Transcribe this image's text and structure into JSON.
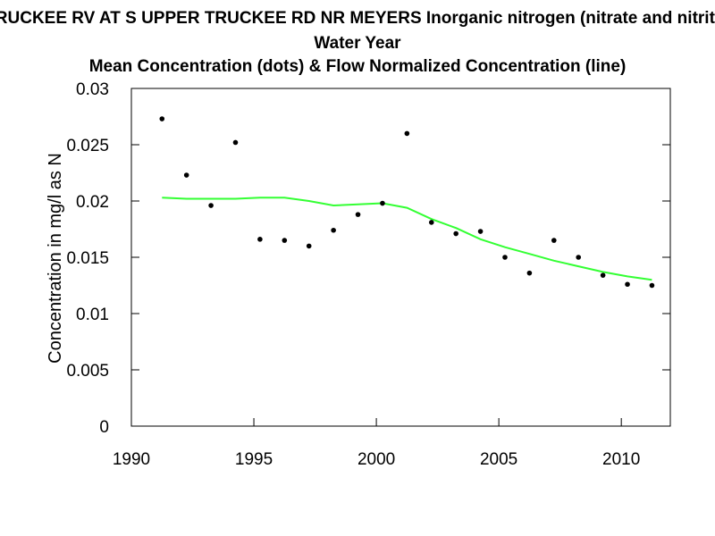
{
  "chart_data": {
    "type": "scatter",
    "title": "TRUCKEE RV AT S UPPER TRUCKEE RD NR MEYERS   Inorganic nitrogen (nitrate and nitrite)",
    "subtitle": "Water Year",
    "subtitle2": "Mean Concentration (dots) & Flow Normalized Concentration (line)",
    "xlabel": "",
    "ylabel": "Concentration in mg/l as N",
    "xlim": [
      1990,
      2012
    ],
    "ylim": [
      0,
      0.03
    ],
    "x_ticks": [
      1990,
      1995,
      2000,
      2005,
      2010
    ],
    "x_tick_labels": [
      "1990",
      "1995",
      "2000",
      "2005",
      "2010"
    ],
    "y_ticks": [
      0,
      0.005,
      0.01,
      0.015,
      0.02,
      0.025,
      0.03
    ],
    "y_tick_labels": [
      "0",
      "0.005",
      "0.01",
      "0.015",
      "0.02",
      "0.025",
      "0.03"
    ],
    "grid": false,
    "series": [
      {
        "name": "Mean Concentration",
        "kind": "points",
        "color": "#000000",
        "x": [
          1991.25,
          1992.25,
          1993.25,
          1994.25,
          1995.25,
          1996.25,
          1997.25,
          1998.25,
          1999.25,
          2000.25,
          2001.25,
          2002.25,
          2003.25,
          2004.25,
          2005.25,
          2006.25,
          2007.25,
          2008.25,
          2009.25,
          2010.25,
          2011.25
        ],
        "y": [
          0.0273,
          0.0223,
          0.0196,
          0.0252,
          0.0166,
          0.0165,
          0.016,
          0.0174,
          0.0188,
          0.0198,
          0.026,
          0.0181,
          0.0171,
          0.0173,
          0.015,
          0.0136,
          0.0165,
          0.015,
          0.0134,
          0.0126,
          0.0125
        ]
      },
      {
        "name": "Flow Normalized Concentration",
        "kind": "line",
        "color": "#33ff33",
        "x": [
          1991.25,
          1992.25,
          1993.25,
          1994.25,
          1995.25,
          1996.25,
          1997.25,
          1998.25,
          1999.25,
          2000.25,
          2001.25,
          2002.25,
          2003.25,
          2004.25,
          2005.25,
          2006.25,
          2007.25,
          2008.25,
          2009.25,
          2010.25,
          2011.25
        ],
        "y": [
          0.0203,
          0.0202,
          0.0202,
          0.0202,
          0.0203,
          0.0203,
          0.02,
          0.0196,
          0.0197,
          0.0198,
          0.0194,
          0.0184,
          0.0176,
          0.0166,
          0.0159,
          0.0153,
          0.0147,
          0.0142,
          0.0137,
          0.0133,
          0.013
        ]
      }
    ]
  }
}
